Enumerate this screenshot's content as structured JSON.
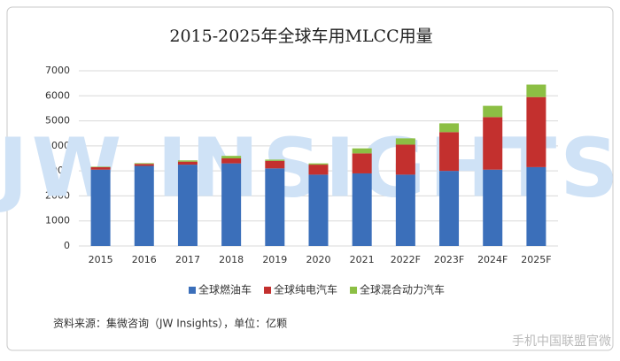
{
  "chart_data": {
    "type": "stacked-bar",
    "title": "2015-2025年全球车用MLCC用量",
    "categories": [
      "2015",
      "2016",
      "2017",
      "2018",
      "2019",
      "2020",
      "2021",
      "2022F",
      "2023F",
      "2024F",
      "2025F"
    ],
    "series": [
      {
        "name": "全球燃油车",
        "color": "#3b6fba",
        "values": [
          3050,
          3200,
          3250,
          3300,
          3100,
          2850,
          2900,
          2850,
          3000,
          3050,
          3150
        ]
      },
      {
        "name": "全球纯电汽车",
        "color": "#c3302e",
        "values": [
          100,
          80,
          120,
          200,
          300,
          400,
          800,
          1200,
          1550,
          2100,
          2800
        ]
      },
      {
        "name": "全球混合动力汽车",
        "color": "#8cbf44",
        "values": [
          20,
          30,
          50,
          100,
          50,
          50,
          200,
          250,
          350,
          450,
          500
        ]
      }
    ],
    "ylim": [
      0,
      7000
    ],
    "yticks": [
      0,
      1000,
      2000,
      3000,
      4000,
      5000,
      6000,
      7000
    ],
    "grid": true,
    "source": "资料来源：集微咨询（JW Insights），单位：亿颗",
    "watermark": "JW INSIGHTS",
    "corner_watermark": "手机中国联盟官微"
  }
}
